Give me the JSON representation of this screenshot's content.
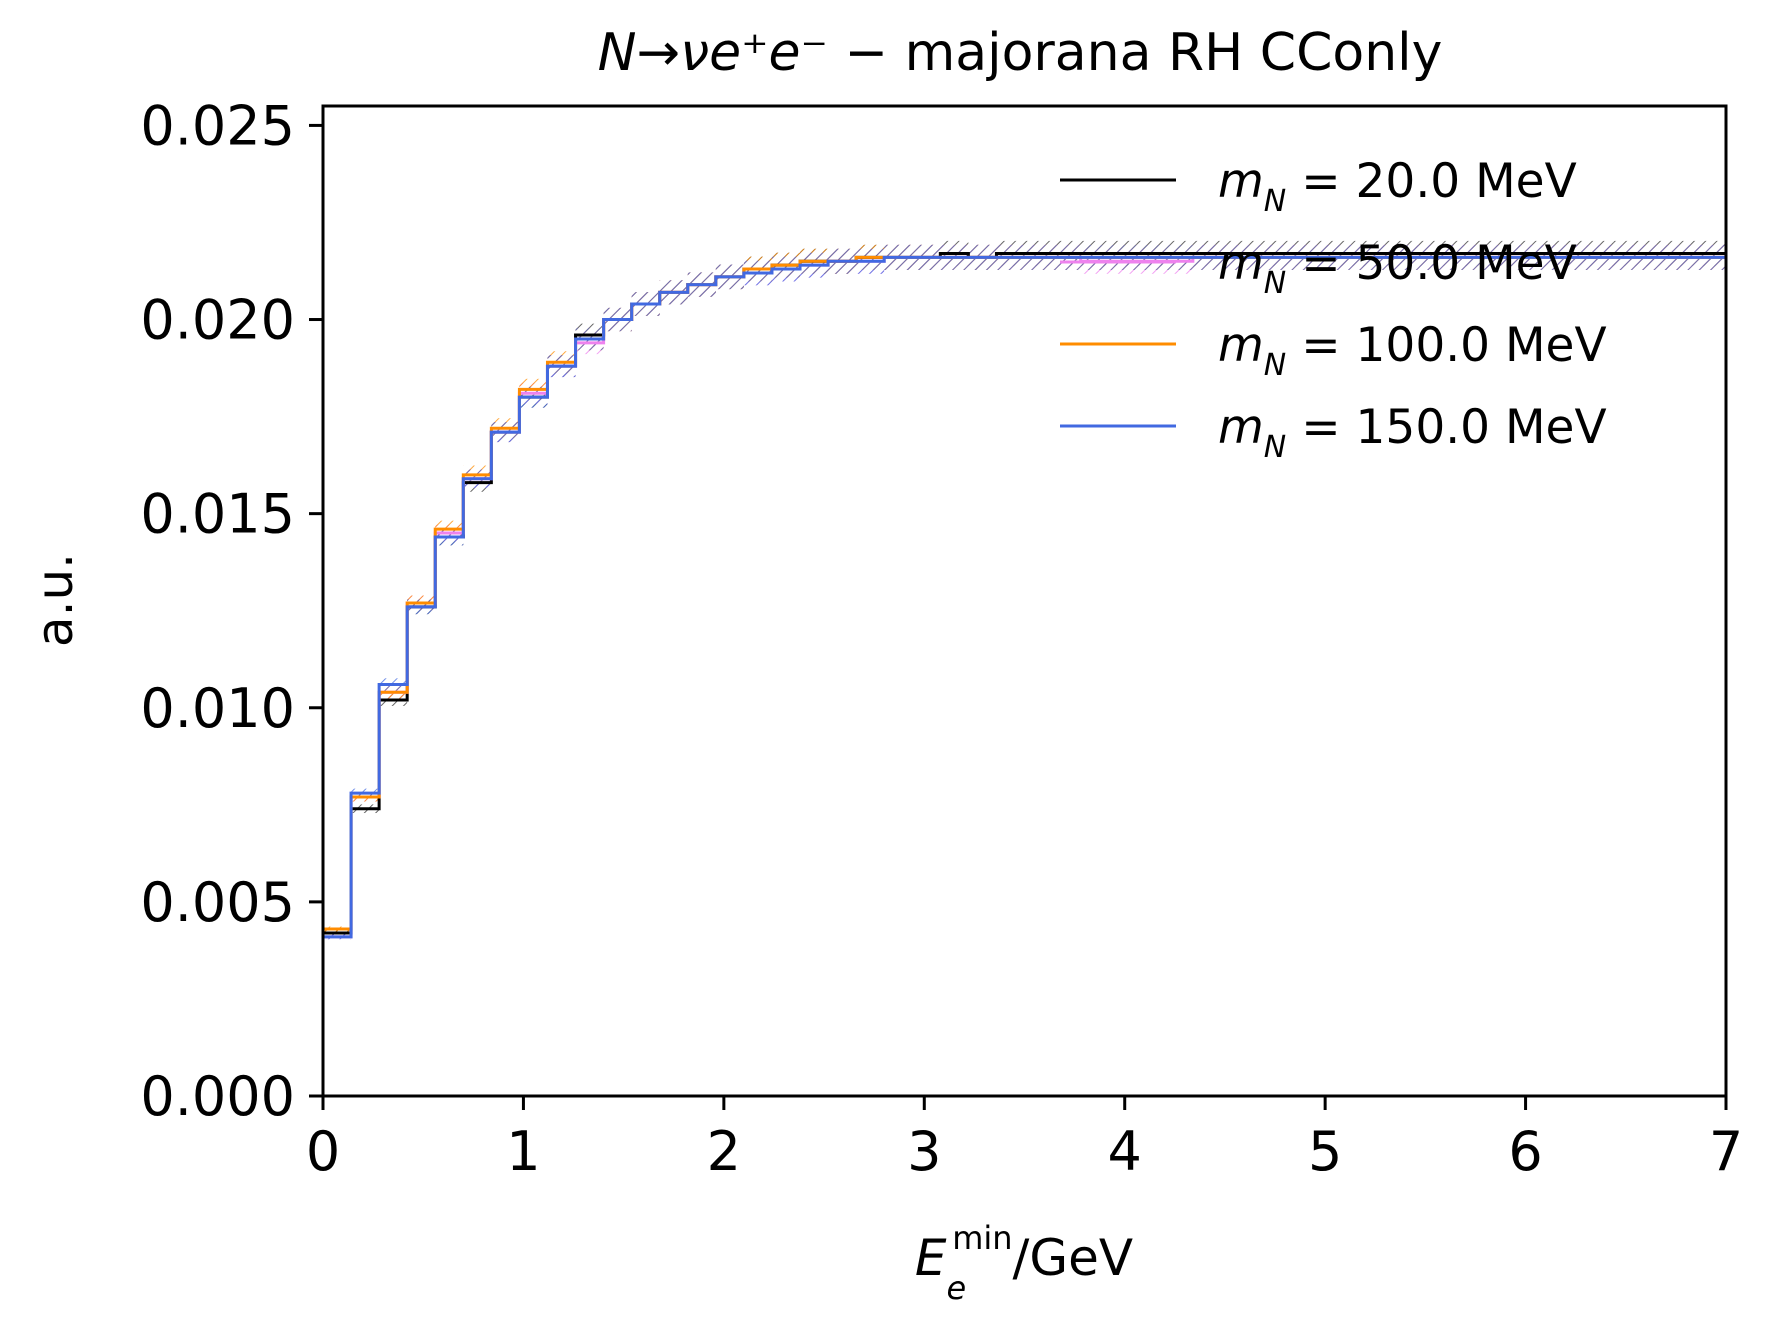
{
  "chart_data": {
    "type": "line",
    "step": true,
    "title": {
      "math": "N→νe⁺e⁻",
      "text": " − majorana RH CConly"
    },
    "xlabel": {
      "base": "E",
      "sub": "e",
      "sup": "min",
      "unit": "/GeV"
    },
    "ylabel": "a.u.",
    "xlim": [
      0,
      7
    ],
    "ylim": [
      0,
      0.0255
    ],
    "xticks": [
      "0",
      "1",
      "2",
      "3",
      "4",
      "5",
      "6",
      "7"
    ],
    "yticks": [
      "0.000",
      "0.005",
      "0.010",
      "0.015",
      "0.020",
      "0.025"
    ],
    "legend_position": "top-right",
    "bin_edges": [
      0,
      0.14,
      0.28,
      0.42,
      0.56,
      0.7,
      0.84,
      0.98,
      1.12,
      1.26,
      1.4,
      1.54,
      1.68,
      1.82,
      1.96,
      2.1,
      2.24,
      2.38,
      2.52,
      2.66,
      2.8,
      2.94,
      3.08,
      3.22,
      3.36,
      3.5,
      3.64,
      3.78,
      3.92,
      4.06,
      4.2,
      4.34,
      4.48,
      4.62,
      4.76,
      4.9,
      5.04,
      5.18,
      5.32,
      5.46,
      5.6,
      5.74,
      5.88,
      6.02,
      6.16,
      6.3,
      6.44,
      6.58,
      6.72,
      6.86,
      7.0
    ],
    "series": [
      {
        "name": "m_N = 20.0 MeV",
        "label": {
          "m": "m",
          "sub": "N",
          "rest": " = 20.0 MeV"
        },
        "color": "#000000",
        "band_color": "#555555",
        "values": [
          0.0042,
          0.0074,
          0.0102,
          0.0126,
          0.0144,
          0.0158,
          0.0171,
          0.018,
          0.0188,
          0.0196,
          0.02,
          0.0204,
          0.0207,
          0.0209,
          0.0211,
          0.0213,
          0.0214,
          0.0215,
          0.0215,
          0.0216,
          0.0216,
          0.0216,
          0.0217,
          0.0216,
          0.0217,
          0.0217,
          0.0217,
          0.0217,
          0.0217,
          0.0217,
          0.0217,
          0.0217,
          0.0217,
          0.0217,
          0.0217,
          0.0217,
          0.0217,
          0.0217,
          0.0217,
          0.0217,
          0.0217,
          0.0217,
          0.0217,
          0.0217,
          0.0217,
          0.0217,
          0.0217,
          0.0217,
          0.0217,
          0.0217
        ]
      },
      {
        "name": "m_N = 50.0 MeV",
        "label": {
          "m": "m",
          "sub": "N",
          "rest": " = 50.0 MeV"
        },
        "color": "#ee82ee",
        "band_color": "#ee82ee",
        "values": [
          0.0041,
          0.0077,
          0.0104,
          0.0127,
          0.0145,
          0.0159,
          0.0171,
          0.0181,
          0.0188,
          0.0194,
          0.02,
          0.0204,
          0.0207,
          0.0209,
          0.0211,
          0.0212,
          0.0213,
          0.0214,
          0.0215,
          0.0215,
          0.0216,
          0.0216,
          0.0216,
          0.0216,
          0.0216,
          0.0216,
          0.0216,
          0.0215,
          0.0215,
          0.0215,
          0.0215,
          0.0216,
          0.0216,
          0.0216,
          0.0216,
          0.0216,
          0.0216,
          0.0216,
          0.0216,
          0.0216,
          0.0216,
          0.0216,
          0.0216,
          0.0216,
          0.0216,
          0.0216,
          0.0216,
          0.0216,
          0.0216,
          0.0216
        ]
      },
      {
        "name": "m_N = 100.0 MeV",
        "label": {
          "m": "m",
          "sub": "N",
          "rest": " = 100.0 MeV"
        },
        "color": "#ff8c00",
        "band_color": "#ff8c00",
        "values": [
          0.0043,
          0.0077,
          0.0104,
          0.0127,
          0.0146,
          0.016,
          0.0172,
          0.0182,
          0.0189,
          0.0195,
          0.02,
          0.0204,
          0.0207,
          0.0209,
          0.0211,
          0.0213,
          0.0214,
          0.0215,
          0.0215,
          0.0216,
          0.0216,
          0.0216,
          0.0216,
          0.0216,
          0.0216,
          0.0216,
          0.0216,
          0.0216,
          0.0216,
          0.0216,
          0.0216,
          0.0216,
          0.0216,
          0.0216,
          0.0216,
          0.0216,
          0.0216,
          0.0216,
          0.0216,
          0.0216,
          0.0216,
          0.0216,
          0.0216,
          0.0216,
          0.0216,
          0.0216,
          0.0216,
          0.0216,
          0.0216,
          0.0216
        ]
      },
      {
        "name": "m_N = 150.0 MeV",
        "label": {
          "m": "m",
          "sub": "N",
          "rest": " = 150.0 MeV"
        },
        "color": "#4169e1",
        "band_color": "#4169e1",
        "values": [
          0.0041,
          0.0078,
          0.0106,
          0.0126,
          0.0144,
          0.0159,
          0.0171,
          0.018,
          0.0188,
          0.0195,
          0.02,
          0.0204,
          0.0207,
          0.0209,
          0.0211,
          0.0212,
          0.0213,
          0.0214,
          0.0215,
          0.0215,
          0.0216,
          0.0216,
          0.0216,
          0.0216,
          0.0216,
          0.0216,
          0.0216,
          0.0216,
          0.0216,
          0.0216,
          0.0216,
          0.0216,
          0.0216,
          0.0216,
          0.0216,
          0.0216,
          0.0216,
          0.0216,
          0.0216,
          0.0216,
          0.0216,
          0.0216,
          0.0216,
          0.0216,
          0.0216,
          0.0216,
          0.0216,
          0.0216,
          0.0216,
          0.0216
        ]
      }
    ]
  }
}
